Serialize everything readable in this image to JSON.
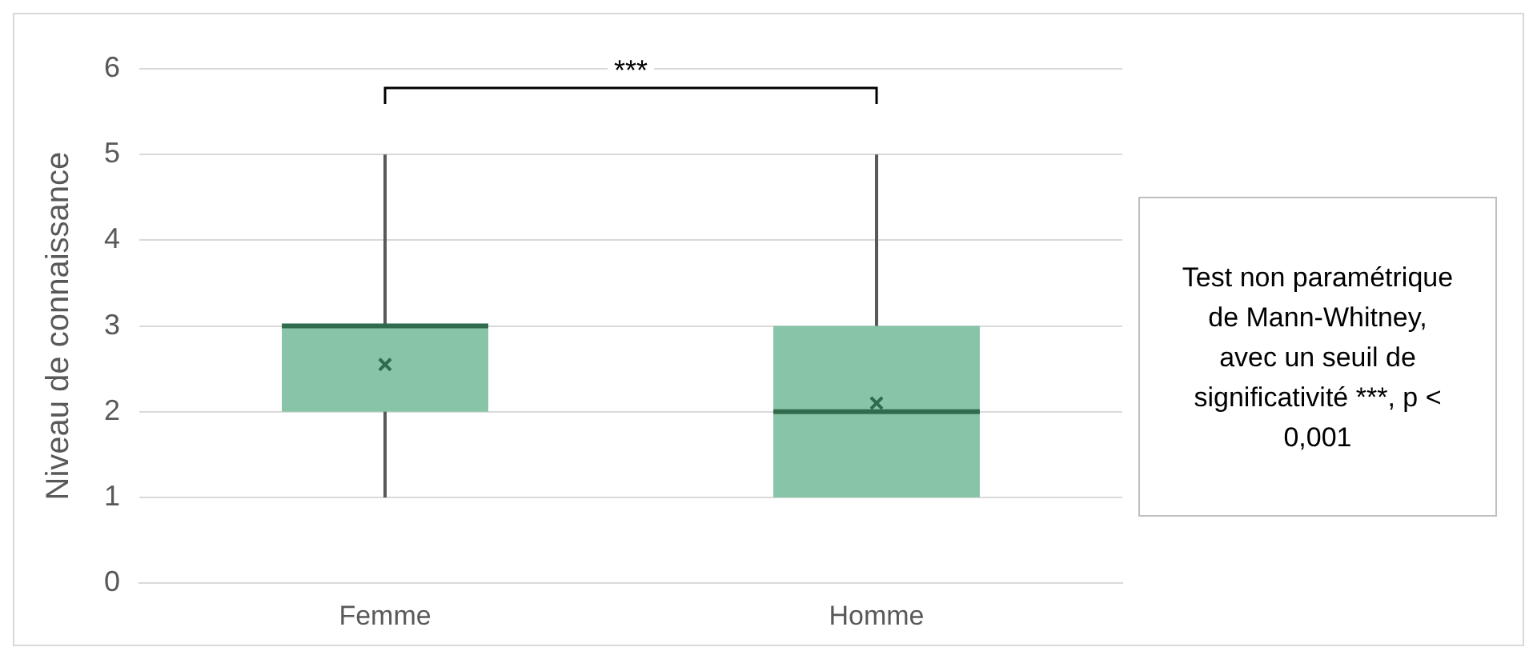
{
  "chart_data": {
    "type": "box",
    "categories": [
      "Femme",
      "Homme"
    ],
    "color": "#88c4a8",
    "marker": "cross",
    "ylabel": "Niveau de connaissance",
    "ylim": [
      0,
      6
    ],
    "yticks": [
      0,
      1,
      2,
      3,
      4,
      5,
      6
    ],
    "grid": "y",
    "boxes": [
      {
        "low": 1,
        "q1": 2,
        "median": 3,
        "q3": 3,
        "high": 5,
        "mean": 2.55
      },
      {
        "low": 1,
        "q1": 1,
        "median": 2,
        "q3": 3,
        "high": 5,
        "mean": 2.1
      }
    ],
    "annotations": [
      "***",
      "Test non paramétrique de Mann-Whitney, avec un seuil de significativité ***, p < 0,001"
    ]
  }
}
